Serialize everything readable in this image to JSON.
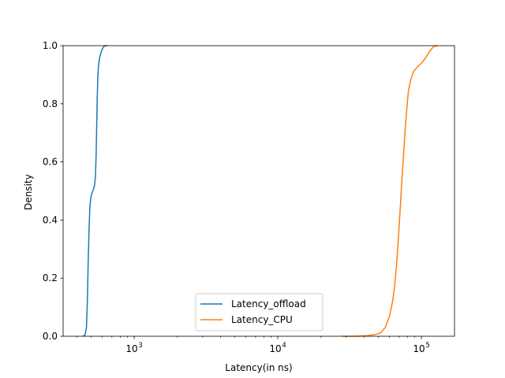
{
  "chart_data": {
    "type": "line",
    "xlabel": "Latency(in ns)",
    "ylabel": "Density",
    "xscale": "log",
    "xlim": [
      320,
      170000
    ],
    "ylim": [
      0,
      1.0
    ],
    "x_ticks": [
      {
        "value": 1000,
        "label": "10",
        "exp": "3"
      },
      {
        "value": 10000,
        "label": "10",
        "exp": "4"
      },
      {
        "value": 100000,
        "label": "10",
        "exp": "5"
      }
    ],
    "y_ticks": [
      {
        "value": 0.0,
        "label": "0.0"
      },
      {
        "value": 0.2,
        "label": "0.2"
      },
      {
        "value": 0.4,
        "label": "0.4"
      },
      {
        "value": 0.6,
        "label": "0.6"
      },
      {
        "value": 0.8,
        "label": "0.8"
      },
      {
        "value": 1.0,
        "label": "1.0"
      }
    ],
    "grid": false,
    "legend_position": "bottom-center",
    "series": [
      {
        "name": "Latency_offload",
        "color": "#1f77b4",
        "points": [
          [
            440,
            0.0
          ],
          [
            455,
            0.005
          ],
          [
            465,
            0.03
          ],
          [
            472,
            0.12
          ],
          [
            478,
            0.25
          ],
          [
            485,
            0.37
          ],
          [
            492,
            0.45
          ],
          [
            500,
            0.48
          ],
          [
            510,
            0.495
          ],
          [
            520,
            0.505
          ],
          [
            530,
            0.52
          ],
          [
            537,
            0.55
          ],
          [
            543,
            0.62
          ],
          [
            548,
            0.72
          ],
          [
            553,
            0.82
          ],
          [
            558,
            0.89
          ],
          [
            565,
            0.935
          ],
          [
            575,
            0.96
          ],
          [
            590,
            0.98
          ],
          [
            610,
            0.995
          ],
          [
            625,
            1.0
          ],
          [
            650,
            1.0
          ]
        ]
      },
      {
        "name": "Latency_CPU",
        "color": "#ff7f0e",
        "points": [
          [
            28000,
            0.0
          ],
          [
            35000,
            0.0
          ],
          [
            42000,
            0.002
          ],
          [
            48000,
            0.006
          ],
          [
            52000,
            0.012
          ],
          [
            56000,
            0.03
          ],
          [
            60000,
            0.07
          ],
          [
            63000,
            0.12
          ],
          [
            65000,
            0.17
          ],
          [
            67000,
            0.24
          ],
          [
            69000,
            0.33
          ],
          [
            71000,
            0.43
          ],
          [
            73000,
            0.53
          ],
          [
            75000,
            0.62
          ],
          [
            77000,
            0.71
          ],
          [
            79000,
            0.78
          ],
          [
            81000,
            0.84
          ],
          [
            84000,
            0.88
          ],
          [
            88000,
            0.91
          ],
          [
            93000,
            0.925
          ],
          [
            100000,
            0.94
          ],
          [
            106000,
            0.955
          ],
          [
            112000,
            0.975
          ],
          [
            118000,
            0.99
          ],
          [
            123000,
            0.998
          ],
          [
            130000,
            1.0
          ]
        ]
      }
    ]
  }
}
